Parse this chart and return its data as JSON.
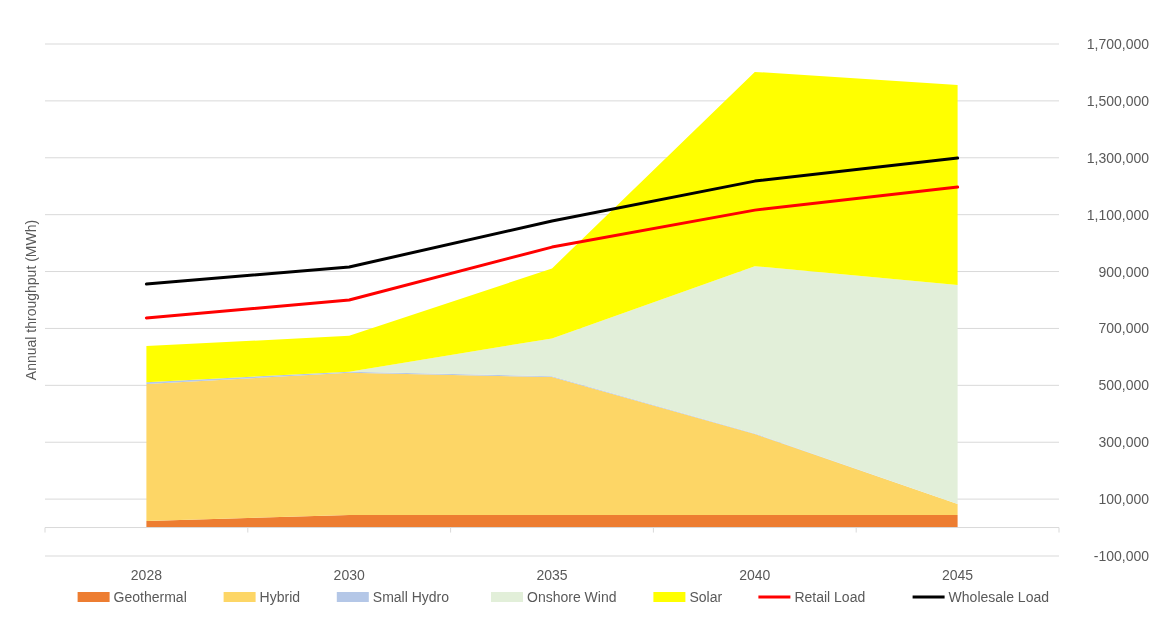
{
  "chart_data": {
    "type": "area",
    "stacked": true,
    "ylabel": "Annual throughput (MWh)",
    "categories": [
      "2028",
      "2030",
      "2035",
      "2040",
      "2045"
    ],
    "series": [
      {
        "name": "Geothermal",
        "color": "#ed7d31",
        "values": [
          23000,
          44000,
          44000,
          44000,
          44000
        ]
      },
      {
        "name": "Hybrid",
        "color": "#fdd666",
        "values": [
          482000,
          500000,
          485000,
          285000,
          39000
        ]
      },
      {
        "name": "Small Hydro",
        "color": "#b4c7e7",
        "values": [
          6000,
          4000,
          3000,
          2000,
          0
        ]
      },
      {
        "name": "Onshore Wind",
        "color": "#e2efd9",
        "values": [
          0,
          0,
          133000,
          588000,
          770000
        ]
      },
      {
        "name": "Solar",
        "color": "#ffff00",
        "values": [
          127000,
          126000,
          246000,
          683000,
          703000
        ]
      },
      {
        "name": "Retail Load",
        "type": "line",
        "color": "#ff0000",
        "values": [
          737000,
          800000,
          986000,
          1116000,
          1197000
        ]
      },
      {
        "name": "Wholesale Load",
        "type": "line",
        "color": "#000000",
        "values": [
          856000,
          916000,
          1078000,
          1218000,
          1299000
        ]
      }
    ],
    "ylim": [
      -100000,
      1700000
    ],
    "yticks": [
      {
        "value": -100000,
        "label": "-100,000"
      },
      {
        "value": 100000,
        "label": "100,000"
      },
      {
        "value": 300000,
        "label": "300,000"
      },
      {
        "value": 500000,
        "label": "500,000"
      },
      {
        "value": 700000,
        "label": "700,000"
      },
      {
        "value": 900000,
        "label": "900,000"
      },
      {
        "value": 1100000,
        "label": "1,100,000"
      },
      {
        "value": 1300000,
        "label": "1,300,000"
      },
      {
        "value": 1500000,
        "label": "1,500,000"
      },
      {
        "value": 1700000,
        "label": "1,700,000"
      }
    ],
    "grid": "y",
    "legend": "bottom"
  }
}
